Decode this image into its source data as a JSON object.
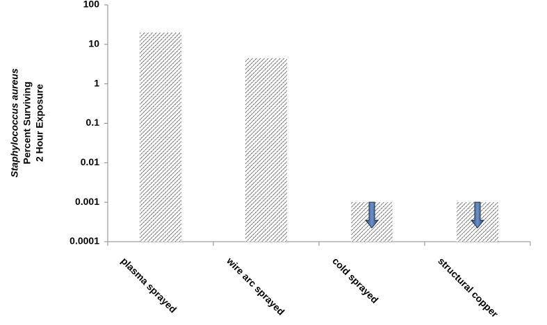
{
  "chart_data": {
    "type": "bar",
    "log_scale": true,
    "ylabel": [
      "Staphylococcus aureus",
      "Percent Surviving",
      "2 Hour Exposure"
    ],
    "categories": [
      "plasma sprayed",
      "wire arc sprayed",
      "cold sprayed",
      "structural copper"
    ],
    "values": [
      20,
      4.5,
      0.001,
      0.001
    ],
    "below_limit_arrows": [
      false,
      false,
      true,
      true
    ],
    "color": "#333333",
    "ylim": [
      0.0001,
      100
    ],
    "yticks": [
      0.0001,
      0.001,
      0.01,
      0.1,
      1,
      10,
      100
    ],
    "grid": false
  }
}
